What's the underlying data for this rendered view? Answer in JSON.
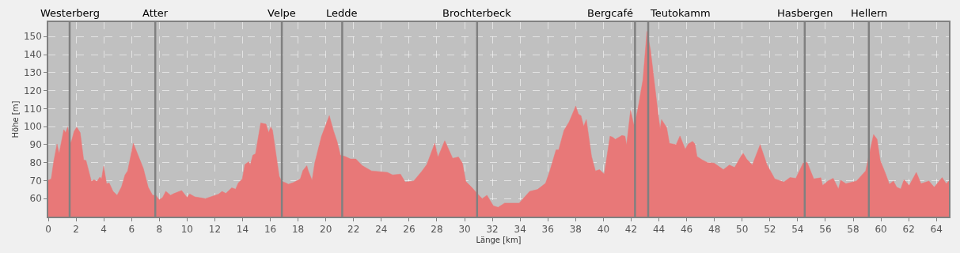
{
  "chart_data": {
    "type": "area",
    "xlabel": "Länge [km]",
    "ylabel": "Höhe [m]",
    "xlim": [
      0,
      64.9
    ],
    "ylim": [
      50,
      158
    ],
    "xticks": [
      0,
      2,
      4,
      6,
      8,
      10,
      12,
      14,
      16,
      18,
      20,
      22,
      24,
      26,
      28,
      30,
      32,
      34,
      36,
      38,
      40,
      42,
      44,
      46,
      48,
      50,
      52,
      54,
      56,
      58,
      60,
      62,
      64
    ],
    "yticks": [
      60,
      70,
      80,
      90,
      100,
      110,
      120,
      130,
      140,
      150
    ],
    "grid": true,
    "series": [
      {
        "color": "#e87878",
        "x": [
          0,
          0.21,
          0.4,
          0.63,
          0.78,
          1.12,
          1.25,
          1.4,
          1.63,
          1.86,
          2.05,
          2.3,
          2.55,
          2.72,
          3.11,
          3.3,
          3.5,
          3.72,
          3.84,
          3.99,
          4.2,
          4.39,
          4.67,
          4.96,
          5.28,
          5.53,
          5.72,
          6.13,
          6.47,
          6.85,
          7.2,
          7.52,
          7.75,
          8.0,
          8.24,
          8.47,
          8.81,
          9.08,
          9.61,
          10.0,
          10.19,
          10.56,
          11.32,
          11.7,
          12.27,
          12.52,
          12.8,
          13.22,
          13.5,
          13.69,
          13.98,
          14.17,
          14.45,
          14.55,
          14.74,
          14.93,
          15.31,
          15.69,
          15.88,
          16.03,
          16.16,
          16.64,
          16.83,
          17.11,
          17.3,
          17.68,
          18.16,
          18.35,
          18.63,
          18.73,
          19.01,
          19.2,
          19.68,
          20.25,
          20.54,
          20.82,
          21.05,
          21.4,
          21.78,
          22.16,
          22.63,
          23.29,
          24.43,
          24.81,
          25.38,
          25.72,
          26.33,
          26.9,
          27.28,
          27.85,
          28.08,
          28.57,
          29.14,
          29.56,
          29.84,
          30.09,
          30.51,
          30.89,
          31.27,
          31.61,
          32.07,
          32.41,
          32.88,
          33.93,
          34.69,
          35.26,
          35.83,
          36.11,
          36.59,
          36.78,
          37.16,
          37.53,
          38.01,
          38.2,
          38.39,
          38.58,
          38.77,
          39.15,
          39.43,
          39.72,
          40.06,
          40.48,
          40.67,
          40.86,
          41.34,
          41.56,
          41.67,
          41.96,
          42.19,
          42.28,
          42.57,
          42.85,
          43.14,
          43.39,
          43.71,
          43.96,
          44.09,
          44.19,
          44.56,
          44.76,
          45.24,
          45.52,
          45.9,
          46.12,
          46.43,
          46.6,
          46.75,
          47.13,
          47.51,
          47.98,
          48.65,
          49.08,
          49.46,
          49.88,
          50.07,
          50.32,
          50.73,
          51.3,
          51.78,
          52.35,
          53.01,
          53.45,
          53.87,
          54.4,
          54.68,
          55.16,
          55.67,
          55.8,
          56.18,
          56.56,
          56.94,
          57.1,
          57.48,
          58.24,
          58.9,
          59.47,
          59.72,
          59.95,
          60.33,
          60.61,
          60.9,
          61.14,
          61.43,
          61.66,
          62.04,
          62.55,
          62.89,
          63.46,
          63.84,
          64.41,
          64.7,
          64.9
        ],
        "values": [
          70.2,
          71,
          81,
          90.3,
          85,
          98.3,
          96.6,
          99.8,
          90.7,
          97.3,
          99.7,
          96.6,
          81.5,
          81.2,
          69.5,
          70.5,
          69.5,
          72,
          71,
          78,
          68.3,
          68.7,
          64,
          61.9,
          66.6,
          73.2,
          75.4,
          90.7,
          84.1,
          76.8,
          66.3,
          61.9,
          61.9,
          59.3,
          60.7,
          64.1,
          61.9,
          62.9,
          64.5,
          60.7,
          62.6,
          61,
          60,
          61,
          62.5,
          64,
          62.9,
          66,
          65.3,
          68.7,
          70.9,
          79,
          80.5,
          78.6,
          84.1,
          84.9,
          102,
          101.4,
          96.6,
          99.8,
          98,
          72.4,
          69.5,
          68.8,
          68,
          69,
          71,
          75.6,
          78.3,
          75.6,
          70.2,
          79.7,
          94.4,
          106.1,
          98,
          91.5,
          84.1,
          83.4,
          82,
          82,
          78.3,
          75.4,
          74.6,
          73.2,
          73.6,
          69.2,
          69.8,
          75,
          79,
          90.7,
          83,
          92.2,
          82.4,
          83.1,
          79.7,
          69.5,
          66.3,
          63,
          60,
          61.9,
          56,
          55.2,
          57.5,
          57.5,
          64,
          65.1,
          68.5,
          74.6,
          87.1,
          87.1,
          97.8,
          102.6,
          111.4,
          107,
          106,
          100.2,
          103.9,
          83.4,
          75.4,
          76.1,
          73.6,
          94.7,
          94.1,
          92.9,
          95.1,
          94.7,
          89.7,
          109,
          101,
          101.7,
          113.4,
          125.9,
          152.9,
          142.7,
          122.2,
          106.1,
          98.8,
          103.9,
          99.5,
          90.7,
          90,
          94.8,
          87.4,
          90.4,
          91.8,
          90.3,
          83.4,
          81.5,
          80,
          79.7,
          76.1,
          78.7,
          77.3,
          83,
          85.2,
          82,
          78.7,
          90,
          79,
          71,
          69.2,
          71.7,
          71.3,
          79.8,
          80.2,
          71,
          71.6,
          67.3,
          69.8,
          71.3,
          65.4,
          70.2,
          68.3,
          69.8,
          75.4,
          95.6,
          93,
          81.2,
          73.9,
          68,
          69.8,
          66.3,
          65.4,
          70.5,
          67.3,
          74.6,
          68.3,
          69.8,
          66.3,
          71.7,
          68.3,
          69.8
        ]
      }
    ],
    "ref_lines": [
      {
        "axis": "x",
        "value": 1.54,
        "label": "Westerberg",
        "color": "#808080"
      },
      {
        "axis": "x",
        "value": 7.71,
        "label": "Atter",
        "color": "#808080"
      },
      {
        "axis": "x",
        "value": 16.83,
        "label": "Velpe",
        "color": "#808080"
      },
      {
        "axis": "x",
        "value": 21.18,
        "label": "Ledde",
        "color": "#808080"
      },
      {
        "axis": "x",
        "value": 30.9,
        "label": "Brochterbeck",
        "color": "#808080"
      },
      {
        "axis": "x",
        "value": 42.28,
        "label": "Bergcafé",
        "color": "#808080"
      },
      {
        "axis": "x",
        "value": 43.23,
        "label": "Teutokamm",
        "color": "#808080"
      },
      {
        "axis": "x",
        "value": 54.51,
        "label": "Hasbergen",
        "color": "#808080"
      },
      {
        "axis": "x",
        "value": 59.13,
        "label": "Hellern",
        "color": "#808080"
      }
    ]
  }
}
